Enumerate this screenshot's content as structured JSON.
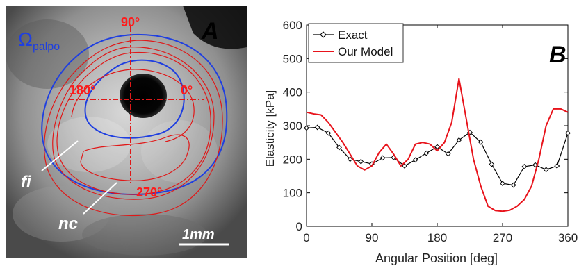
{
  "panel_a": {
    "panel_label": "A",
    "omega_symbol": "Ω",
    "omega_subscript": "palpo",
    "angle_90": "90°",
    "angle_180": "180°",
    "angle_0": "0°",
    "angle_270": "270°",
    "fi_label": "fi",
    "nc_label": "nc",
    "scale_bar_label": "1mm",
    "colors": {
      "omega_contour": "#1f3fe0",
      "tissue_contours": "#e01818",
      "angle_labels": "#ff1a1a"
    }
  },
  "chart_data": {
    "type": "line",
    "panel_label": "B",
    "xlabel": "Angular Position [deg]",
    "ylabel": "Elasticity [kPa]",
    "xlim": [
      0,
      360
    ],
    "ylim": [
      0,
      600
    ],
    "xticks": [
      0,
      90,
      180,
      270,
      360
    ],
    "yticks": [
      0,
      100,
      200,
      300,
      400,
      500,
      600
    ],
    "grid": false,
    "legend_position": "top-left",
    "series": [
      {
        "name": "Exact",
        "color": "#000000",
        "marker": "diamond",
        "x": [
          0,
          15,
          30,
          45,
          60,
          75,
          90,
          105,
          120,
          135,
          150,
          165,
          180,
          195,
          210,
          225,
          240,
          255,
          270,
          285,
          300,
          315,
          330,
          345,
          360
        ],
        "y": [
          293,
          295,
          278,
          235,
          200,
          193,
          186,
          204,
          205,
          180,
          198,
          218,
          237,
          216,
          257,
          280,
          251,
          185,
          128,
          123,
          178,
          183,
          169,
          180,
          278
        ]
      },
      {
        "name": "Our Model",
        "color": "#e8131b",
        "marker": "none",
        "x": [
          0,
          10,
          20,
          30,
          40,
          50,
          60,
          70,
          80,
          90,
          100,
          110,
          120,
          130,
          140,
          150,
          160,
          170,
          180,
          190,
          200,
          210,
          220,
          230,
          240,
          250,
          260,
          270,
          280,
          290,
          300,
          310,
          320,
          330,
          340,
          350,
          360
        ],
        "y": [
          340,
          335,
          332,
          310,
          280,
          250,
          215,
          180,
          168,
          180,
          220,
          245,
          215,
          180,
          200,
          245,
          250,
          245,
          225,
          250,
          310,
          440,
          320,
          200,
          120,
          60,
          47,
          45,
          48,
          60,
          80,
          120,
          200,
          300,
          350,
          350,
          340
        ]
      }
    ]
  }
}
